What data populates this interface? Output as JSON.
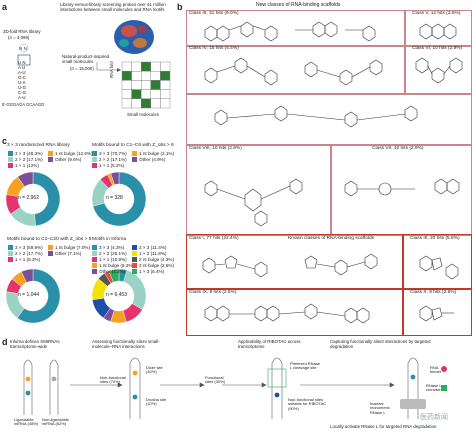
{
  "panels": {
    "a": "a",
    "b": "b",
    "c": "c",
    "d": "d"
  },
  "panel_a": {
    "header": "Library-versus-library screening probes over 61 million interactions between small molecules and RNA motifs",
    "library_title": "3D-fold RNA library",
    "library_count": "(n = 4,096)",
    "rna_top": "N N",
    "rna_lines": [
      "U N",
      "A U",
      "A-U",
      "G-C",
      "U-A",
      "U-G",
      "C-G",
      "A-U"
    ],
    "rna_bottom": "5′-GGGAGA  GCAAGG",
    "np_label": "Natural-product-inspired small molecules",
    "np_count": "(n = 15,000)",
    "grid_ylabel": "RNA fold",
    "grid_xlabel": "Small molecules"
  },
  "panel_b": {
    "header": "New classes of RNA-binding scaffolds",
    "known_header": "Known classes of RNA-binding scaffolds",
    "classes": [
      {
        "label": "Class III, 31 hits (9.0%)"
      },
      {
        "label": "Class V, 12 hits (3.5%)"
      },
      {
        "label": "Class IV, 15 hits (4.4%)"
      },
      {
        "label": "Class VI, 10 hits (2.9%)"
      },
      {
        "label": "Class VIII, 10 hits (2.9%)"
      },
      {
        "label": "Class VII, 10 hits (2.9%)"
      },
      {
        "label": "Class I, 77 hits (22.4%)"
      },
      {
        "label": "Class III, 20 hits (5.8%)"
      },
      {
        "label": "Class IX, 9 hits (2.6%)"
      },
      {
        "label": "Class X, 9 hits (2.6%)"
      }
    ]
  },
  "panel_c": {
    "donuts": [
      {
        "title": "3 × 3 randomized RNA library",
        "n": "n = 2,962",
        "legend": [
          {
            "label": "3 × 3 (48.3%)",
            "color": "#2a8fa8"
          },
          {
            "label": "2 × 2 (17.1%)",
            "color": "#9ad3c3"
          },
          {
            "label": "1 × 1 (12%)",
            "color": "#e6336b"
          },
          {
            "label": "1 nt bulge (12.6%)",
            "color": "#f6a21e"
          },
          {
            "label": "Other (9.6%)",
            "color": "#7d4e9b"
          }
        ],
        "values": [
          48.3,
          17.1,
          12.0,
          12.6,
          9.6
        ]
      },
      {
        "title": "Motifs bound to C1–C6 with Z_obs > 8",
        "n": "n = 328",
        "legend": [
          {
            "label": "3 × 3 (70.7%)",
            "color": "#2a8fa8"
          },
          {
            "label": "2 × 2 (17.1%)",
            "color": "#9ad3c3"
          },
          {
            "label": "1 × 1 (5.2%)",
            "color": "#e6336b"
          },
          {
            "label": "1 nt bulge (2.1%)",
            "color": "#f6a21e"
          },
          {
            "label": "Other (4.9%)",
            "color": "#7d4e9b"
          }
        ],
        "values": [
          70.7,
          17.1,
          5.2,
          2.1,
          4.9
        ]
      },
      {
        "title": "Motifs bound to C1–C20 with Z_obs > 8",
        "n": "n = 1,044",
        "legend": [
          {
            "label": "3 × 3 (59.9%)",
            "color": "#2a8fa8"
          },
          {
            "label": "2 × 2 (17.7%)",
            "color": "#9ad3c3"
          },
          {
            "label": "1 × 1 (8.3%)",
            "color": "#e6336b"
          },
          {
            "label": "1 nt bulge (7.0%)",
            "color": "#f6a21e"
          },
          {
            "label": "Other (7.1%)",
            "color": "#7d4e9b"
          }
        ],
        "values": [
          59.9,
          17.7,
          8.3,
          7.0,
          7.1
        ]
      },
      {
        "title": "Motifs in Inforna",
        "n": "n = 6,453",
        "legend": [
          {
            "label": "3 × 3 (4.3%)",
            "color": "#2a8fa8"
          },
          {
            "label": "2 × 2 (25.1%)",
            "color": "#9ad3c3"
          },
          {
            "label": "1 × 1 (10.9%)",
            "color": "#e6336b"
          },
          {
            "label": "1 nt bulge (8.3%)",
            "color": "#f6a21e"
          },
          {
            "label": "Other (4.2%)",
            "color": "#7d4e9b"
          },
          {
            "label": "2 × 3 (11.4%)",
            "color": "#1f4fa8"
          },
          {
            "label": "1 × 2 (11.8%)",
            "color": "#f2e400"
          },
          {
            "label": "2 nt bulge (4.3%)",
            "color": "#555555"
          },
          {
            "label": "3 nt bulge (2.5%)",
            "color": "#e74c3c"
          },
          {
            "label": "1 × 3 (5.4%)",
            "color": "#27ae60"
          }
        ],
        "values": [
          4.3,
          25.1,
          10.9,
          8.3,
          4.2,
          11.4,
          11.8,
          4.3,
          2.5,
          5.4
        ]
      }
    ]
  },
  "panel_d": {
    "steps": [
      "Inforna defines SMIRNAs transcriptome-wide",
      "Assessing functionally silent small-molecule–RNA interactions",
      "Applicability of RIBOTAC across transcriptome",
      "Capturing functionally silent interactions by targeted degradation"
    ],
    "ligandable": "Ligandable miRNA (48%)",
    "non_ligandable": "Non-ligandable miRNA (52%)",
    "dicer": "Dicer site (40%)",
    "drosha": "Drosha site (10%)",
    "nonfunctional": "Non-functional sites (70%)",
    "functional": "Functional sites (30%)",
    "preferred": "Preferred RNase L cleavage site",
    "nonfunc_ribotac": "Non-functional sites suitable for RIBOTAC (90%)",
    "rna_binder": "RNA binder",
    "rnasel_recruiter": "RNase L recruiter",
    "inactive": "Inactive monomeric RNase L",
    "bottom": "Locally activate RNase L for targeted RNA degradation",
    "watermark": "医药新闻"
  },
  "colors": {
    "teal": "#2a8fa8",
    "mint": "#9ad3c3",
    "pink": "#e6336b",
    "orange": "#f6a21e",
    "purple": "#7d4e9b",
    "red_box": "#c0392b",
    "pink_box": "#c8868c"
  }
}
